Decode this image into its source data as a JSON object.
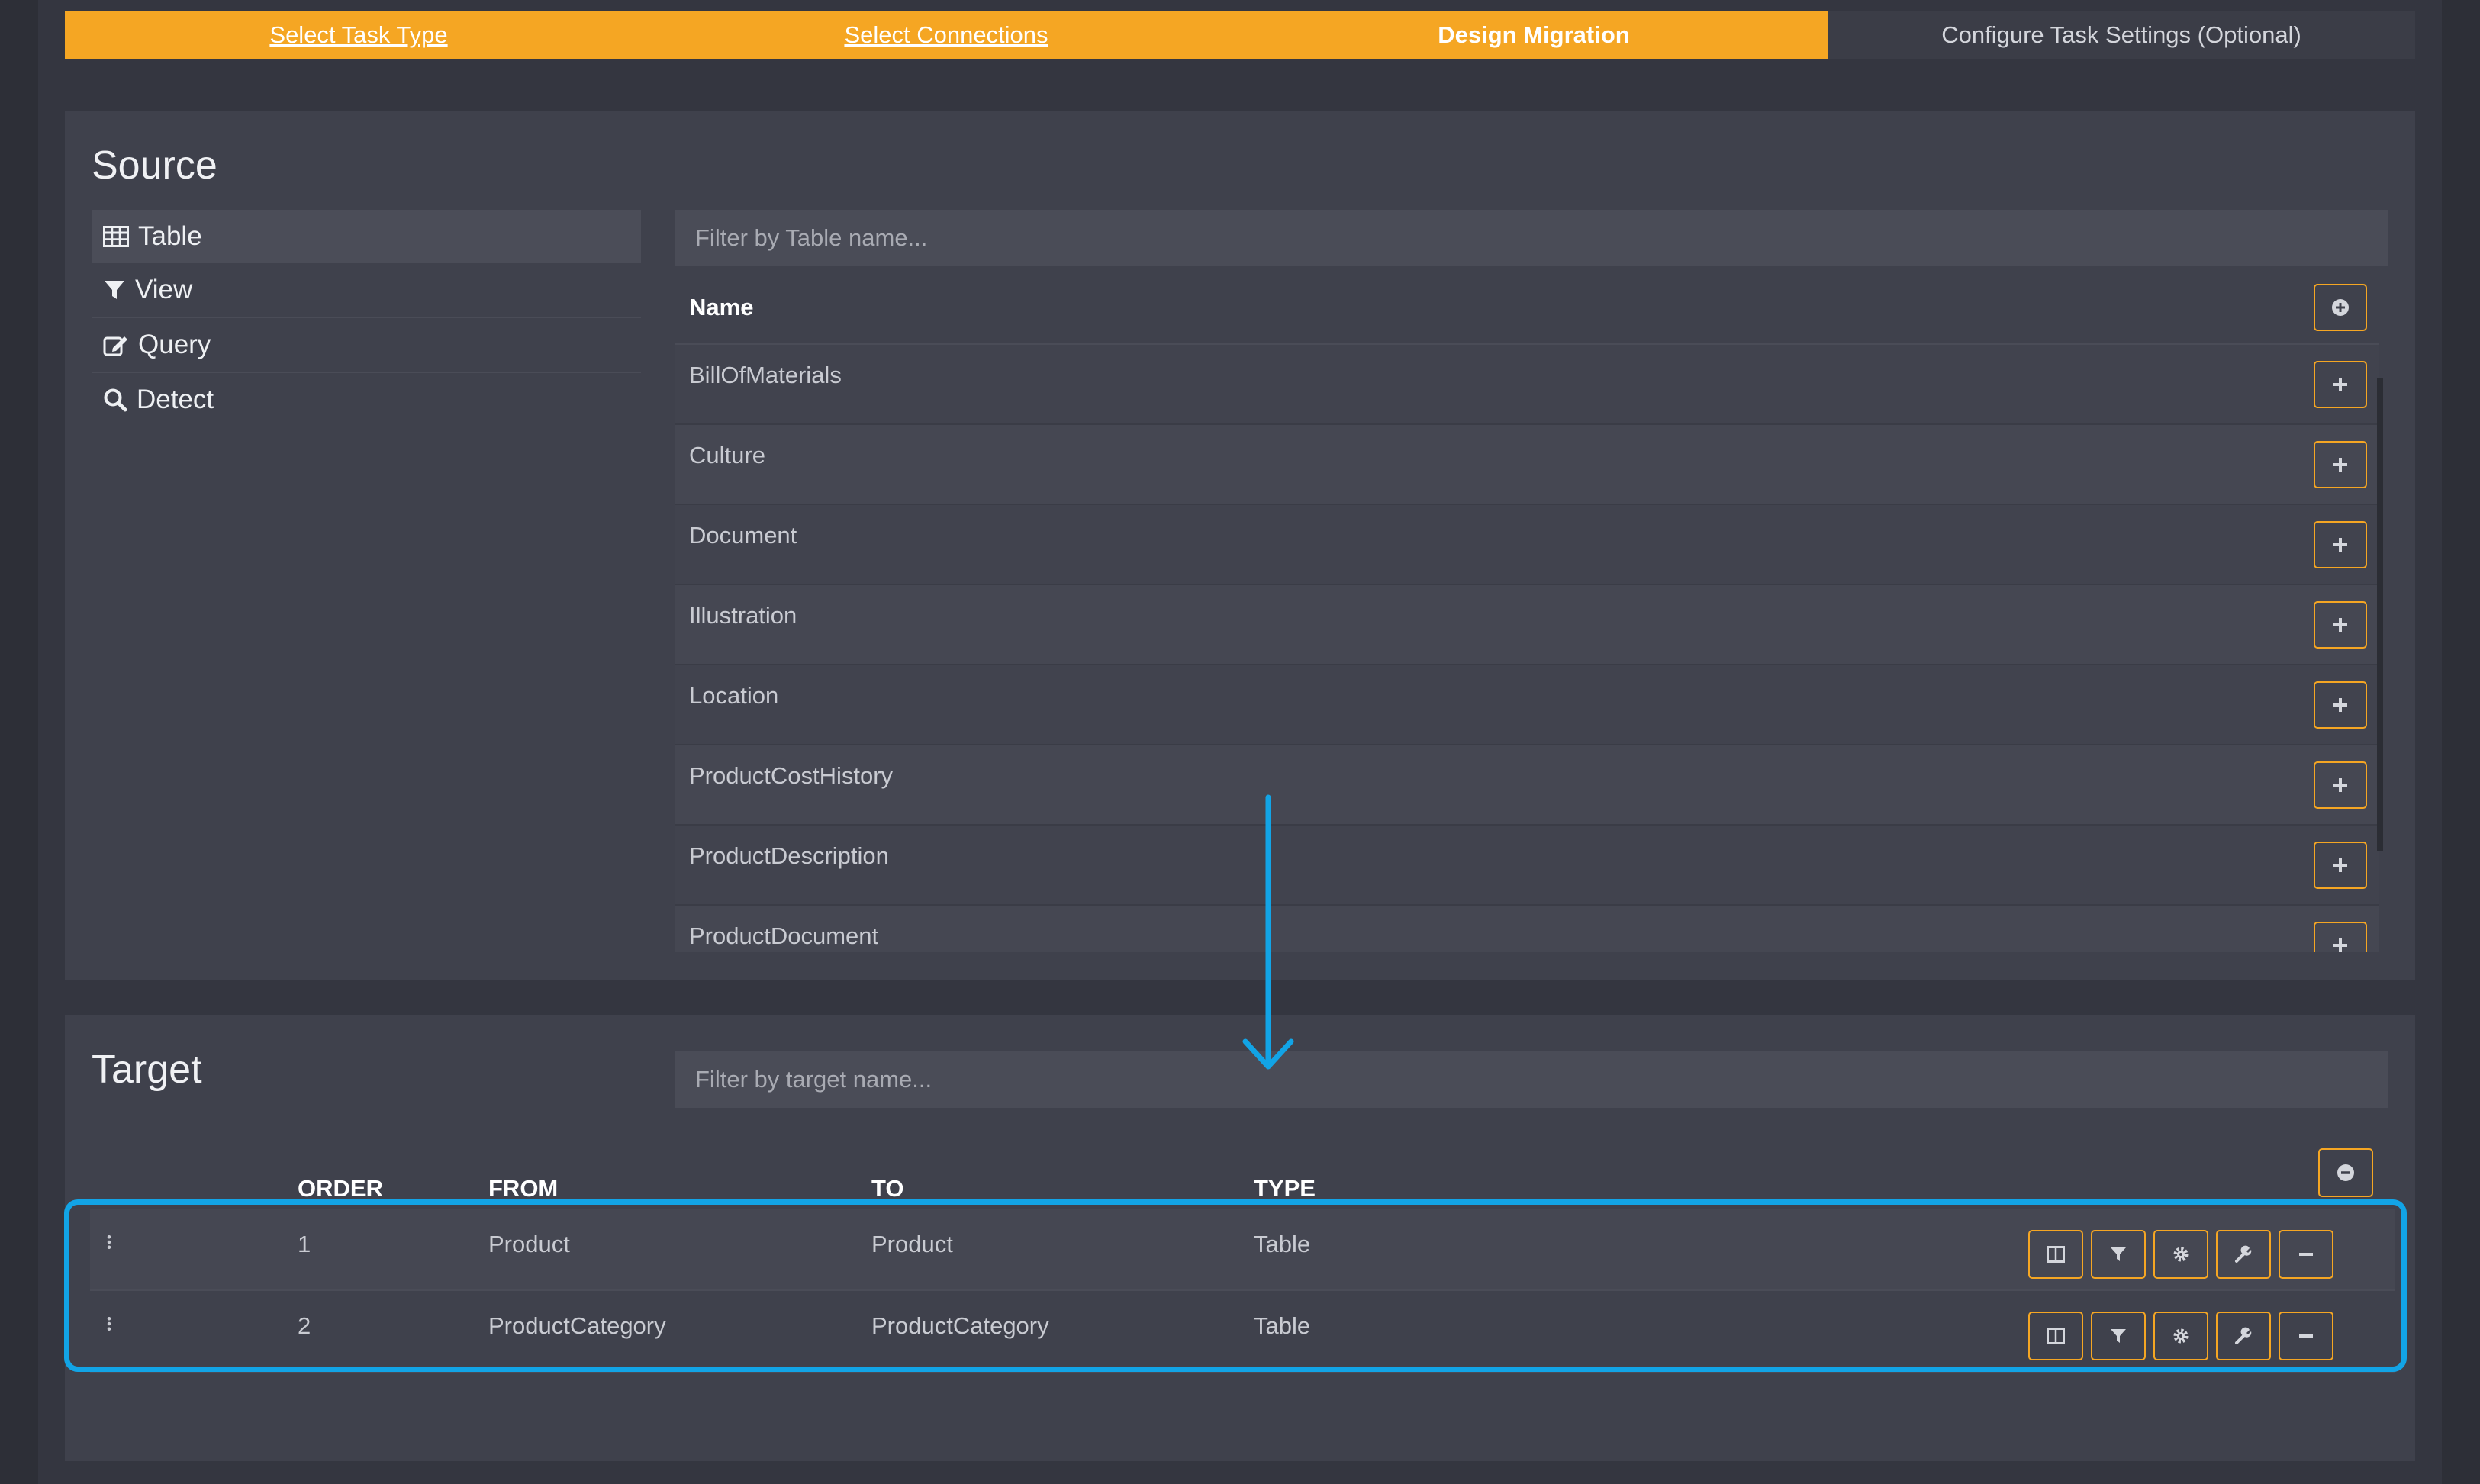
{
  "wizard": {
    "steps": [
      {
        "label": "Select Task Type",
        "state": "done"
      },
      {
        "label": "Select Connections",
        "state": "done"
      },
      {
        "label": "Design Migration",
        "state": "active"
      },
      {
        "label": "Configure Task Settings (Optional)",
        "state": "todo"
      }
    ]
  },
  "source": {
    "title": "Source",
    "nav": [
      {
        "label": "Table",
        "icon": "table-icon"
      },
      {
        "label": "View",
        "icon": "filter-icon"
      },
      {
        "label": "Query",
        "icon": "edit-icon"
      },
      {
        "label": "Detect",
        "icon": "search-icon"
      }
    ],
    "filter_placeholder": "Filter by Table name...",
    "column_name": "Name",
    "rows": [
      "BillOfMaterials",
      "Culture",
      "Document",
      "Illustration",
      "Location",
      "ProductCostHistory",
      "ProductDescription",
      "ProductDocument"
    ]
  },
  "target": {
    "title": "Target",
    "filter_placeholder": "Filter by target name...",
    "columns": {
      "order": "ORDER",
      "from": "FROM",
      "to": "TO",
      "type": "TYPE"
    },
    "rows": [
      {
        "order": "1",
        "from": "Product",
        "to": "Product",
        "type": "Table"
      },
      {
        "order": "2",
        "from": "ProductCategory",
        "to": "ProductCategory",
        "type": "Table"
      }
    ]
  },
  "colors": {
    "accent": "#f5a623",
    "annotation": "#12a4e6",
    "panel": "#3f414c",
    "background": "#2d2f37"
  }
}
